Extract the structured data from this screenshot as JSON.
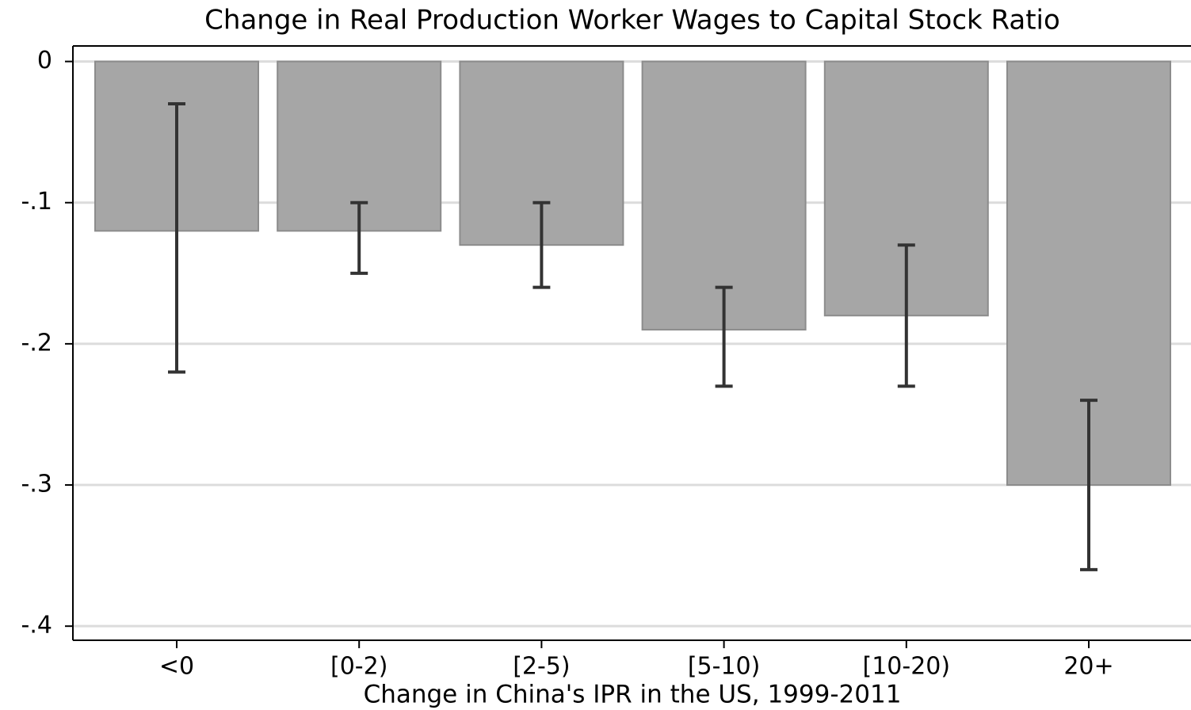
{
  "chart_data": {
    "type": "bar",
    "title": "Change in Real Production Worker Wages to Capital Stock Ratio",
    "x_label": "Change in China's IPR in the US, 1999-2011",
    "categories": [
      "<0",
      "[0-2)",
      "[2-5)",
      "[5-10)",
      "[10-20)",
      "20+"
    ],
    "series": [
      {
        "color": "#a6a6a6",
        "values": [
          -0.12,
          -0.12,
          -0.13,
          -0.19,
          -0.18,
          -0.3
        ],
        "ci_high": [
          -0.03,
          -0.1,
          -0.1,
          -0.16,
          -0.13,
          -0.24
        ],
        "ci_low": [
          -0.22,
          -0.15,
          -0.16,
          -0.23,
          -0.23,
          -0.36
        ]
      }
    ],
    "error_color": "#333333",
    "ylim": [
      -0.41,
      0.011
    ],
    "yticks": [
      0,
      {
        "value": -0.1,
        "label": "-.1"
      },
      {
        "value": -0.2,
        "label": "-.2"
      },
      {
        "value": -0.3,
        "label": "-.3"
      },
      {
        "value": -0.4,
        "label": "-.4"
      }
    ],
    "grid": true
  }
}
